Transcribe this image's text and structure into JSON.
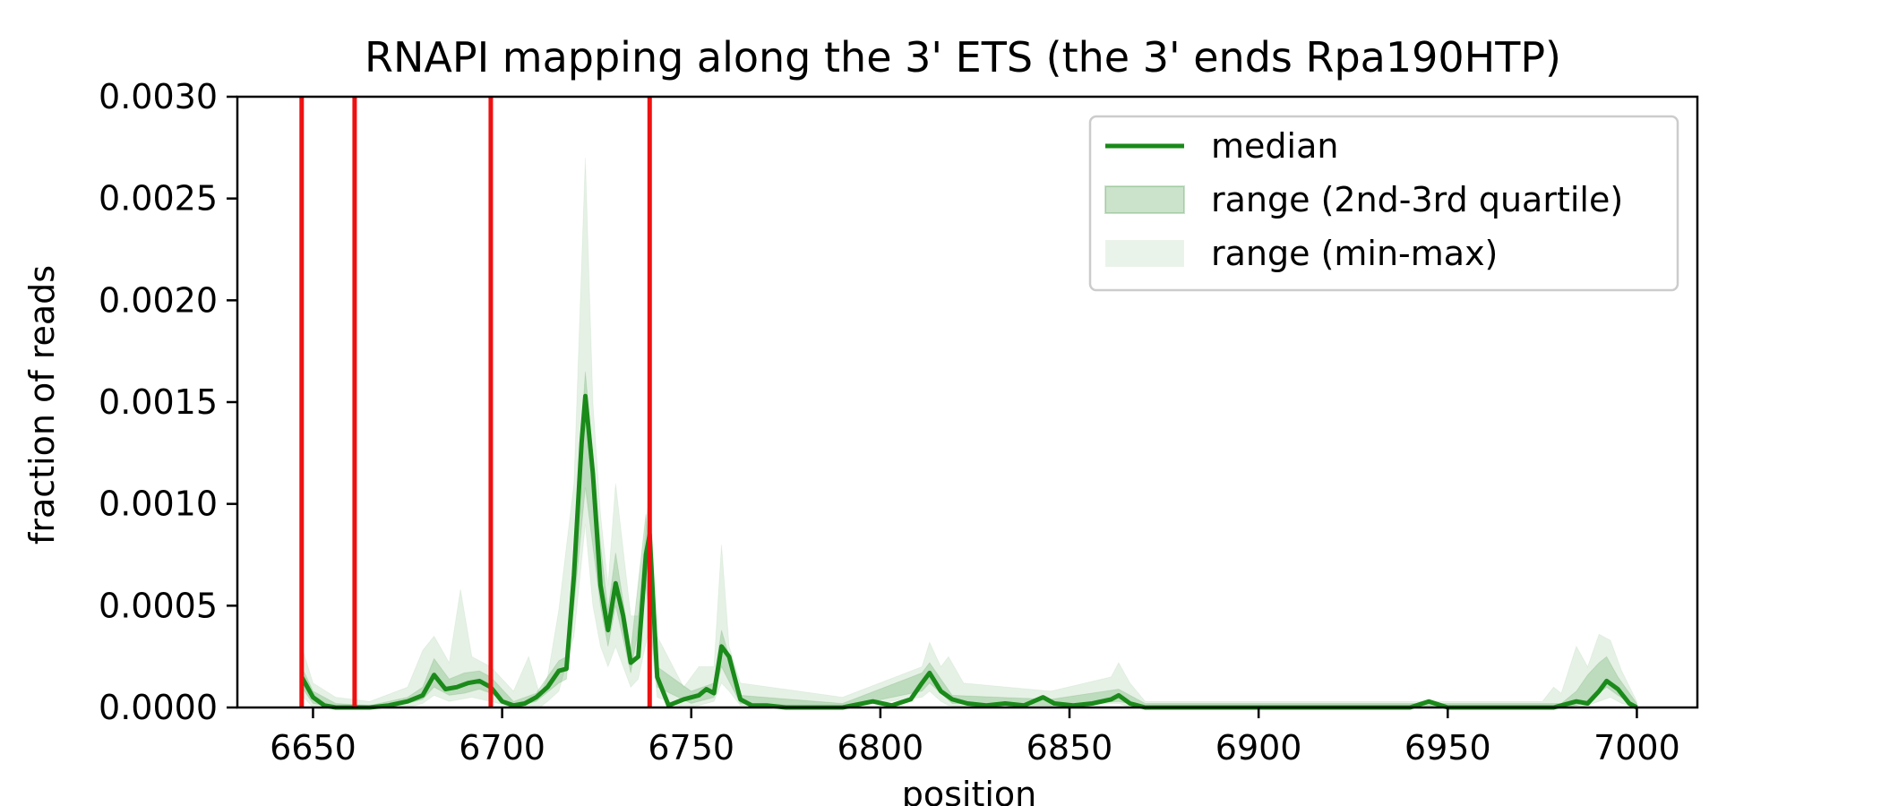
{
  "chart_data": {
    "type": "line",
    "title": "RNAPI mapping along the 3' ETS (the 3' ends Rpa190HTP)",
    "xlabel": "position",
    "ylabel": "fraction of reads",
    "xlim": [
      6630,
      7016
    ],
    "ylim": [
      0,
      0.003
    ],
    "xticks": [
      6650,
      6700,
      6750,
      6800,
      6850,
      6900,
      6950,
      7000
    ],
    "yticks": [
      "0.0000",
      "0.0005",
      "0.0010",
      "0.0015",
      "0.0020",
      "0.0025",
      "0.0030"
    ],
    "grid": false,
    "legend_position": "top-right",
    "colors": {
      "median": "#1a8a1a",
      "band": "#2e8b2e",
      "vline": "#ee1111"
    },
    "vlines": [
      6647,
      6661,
      6697,
      6739
    ],
    "series": [
      {
        "name": "median",
        "x": [
          6647,
          6650,
          6653,
          6656,
          6660,
          6665,
          6670,
          6675,
          6679,
          6682,
          6685,
          6688,
          6691,
          6694,
          6697,
          6700,
          6703,
          6706,
          6709,
          6712,
          6715,
          6717,
          6719,
          6721,
          6722,
          6724,
          6726,
          6728,
          6730,
          6732,
          6734,
          6736,
          6738,
          6739,
          6741,
          6744,
          6748,
          6752,
          6754,
          6756,
          6758,
          6760,
          6763,
          6766,
          6770,
          6775,
          6780,
          6790,
          6798,
          6803,
          6808,
          6811,
          6813,
          6816,
          6819,
          6823,
          6828,
          6833,
          6838,
          6843,
          6846,
          6851,
          6856,
          6861,
          6863,
          6866,
          6870,
          6880,
          6890,
          6900,
          6910,
          6920,
          6930,
          6940,
          6945,
          6950,
          6960,
          6970,
          6978,
          6984,
          6987,
          6990,
          6992,
          6995,
          6998,
          7000
        ],
        "y": [
          0.00015,
          5e-05,
          1e-05,
          0.0,
          0.0,
          0.0,
          1e-05,
          3e-05,
          6e-05,
          0.00016,
          9e-05,
          0.0001,
          0.00012,
          0.00013,
          0.0001,
          3e-05,
          1e-05,
          2e-05,
          5e-05,
          0.0001,
          0.00018,
          0.00019,
          0.00065,
          0.0013,
          0.00153,
          0.00115,
          0.0006,
          0.00038,
          0.00061,
          0.00045,
          0.00022,
          0.00025,
          0.00075,
          0.00085,
          0.00015,
          1e-05,
          4e-05,
          6e-05,
          9e-05,
          7e-05,
          0.0003,
          0.00025,
          4e-05,
          1e-05,
          1e-05,
          0.0,
          0.0,
          0.0,
          3e-05,
          1e-05,
          4e-05,
          0.00012,
          0.00017,
          8e-05,
          4e-05,
          2e-05,
          1e-05,
          2e-05,
          1e-05,
          5e-05,
          2e-05,
          1e-05,
          2e-05,
          4e-05,
          6e-05,
          2e-05,
          0.0,
          0.0,
          0.0,
          0.0,
          0.0,
          0.0,
          0.0,
          0.0,
          3e-05,
          0.0,
          0.0,
          0.0,
          0.0,
          3e-05,
          2e-05,
          8e-05,
          0.00013,
          9e-05,
          2e-05,
          0.0
        ]
      },
      {
        "name": "range (2nd-3rd quartile)",
        "x": [
          6647,
          6650,
          6656,
          6665,
          6675,
          6679,
          6682,
          6686,
          6690,
          6694,
          6697,
          6703,
          6709,
          6715,
          6717,
          6719,
          6722,
          6726,
          6728,
          6730,
          6734,
          6738,
          6741,
          6750,
          6756,
          6758,
          6763,
          6790,
          6811,
          6813,
          6819,
          6845,
          6863,
          6870,
          6950,
          6980,
          6984,
          6987,
          6990,
          6992,
          6995,
          7000
        ],
        "lo": [
          0.0001,
          2e-05,
          0.0,
          0.0,
          2e-05,
          4e-05,
          0.0001,
          6e-05,
          7e-05,
          9e-05,
          7e-05,
          0.0,
          3e-05,
          0.00012,
          0.00014,
          0.0005,
          0.00108,
          0.0005,
          0.0003,
          0.0005,
          0.00017,
          0.0006,
          0.0001,
          2e-05,
          5e-05,
          0.0002,
          2e-05,
          0.0,
          8e-05,
          0.00012,
          2e-05,
          1e-05,
          3e-05,
          0.0,
          0.0,
          0.0,
          1e-05,
          3e-05,
          7e-05,
          0.0001,
          6e-05,
          0.0
        ],
        "hi": [
          0.0002,
          8e-05,
          2e-05,
          1e-05,
          5e-05,
          0.0001,
          0.00024,
          0.00014,
          0.00017,
          0.00018,
          0.00015,
          3e-05,
          7e-05,
          0.00023,
          0.00025,
          0.0008,
          0.00165,
          0.0008,
          0.00048,
          0.00076,
          0.00028,
          0.00095,
          0.0002,
          8e-05,
          0.00012,
          0.00038,
          6e-05,
          2e-05,
          0.00017,
          0.00022,
          6e-05,
          4e-05,
          9e-05,
          2e-05,
          2e-05,
          2e-05,
          8e-05,
          0.00016,
          0.00022,
          0.00025,
          0.00015,
          2e-05
        ]
      },
      {
        "name": "range (min-max)",
        "x": [
          6647,
          6650,
          6656,
          6665,
          6675,
          6679,
          6682,
          6686,
          6689,
          6692,
          6697,
          6703,
          6707,
          6710,
          6712,
          6715,
          6719,
          6722,
          6724,
          6726,
          6728,
          6730,
          6734,
          6736,
          6739,
          6741,
          6748,
          6752,
          6756,
          6758,
          6760,
          6763,
          6790,
          6811,
          6813,
          6816,
          6818,
          6822,
          6845,
          6861,
          6863,
          6866,
          6870,
          6950,
          6975,
          6978,
          6980,
          6984,
          6987,
          6990,
          6993,
          6996,
          7000
        ],
        "lo": [
          6e-05,
          0.0,
          0.0,
          0.0,
          0.0,
          2e-05,
          6e-05,
          3e-05,
          4e-05,
          5e-05,
          3e-05,
          0.0,
          1e-05,
          0.0,
          3e-05,
          8e-05,
          0.00035,
          0.0009,
          0.0005,
          0.0003,
          0.0002,
          0.0003,
          0.0001,
          0.00014,
          0.0004,
          5e-05,
          0.0,
          1e-05,
          3e-05,
          0.00012,
          8e-05,
          1e-05,
          0.0,
          5e-05,
          8e-05,
          3e-05,
          1e-05,
          0.0,
          0.0,
          2e-05,
          2e-05,
          0.0,
          0.0,
          0.0,
          0.0,
          0.0,
          0.0,
          0.0,
          1e-05,
          3e-05,
          5e-05,
          2e-05,
          0.0
        ],
        "hi": [
          0.0003,
          0.00012,
          5e-05,
          3e-05,
          0.0001,
          0.00028,
          0.00035,
          0.00022,
          0.00058,
          0.00025,
          0.0002,
          8e-05,
          0.00025,
          6e-05,
          0.00015,
          0.00048,
          0.0011,
          0.0027,
          0.0015,
          0.00095,
          0.0006,
          0.0011,
          0.00045,
          0.00045,
          0.0011,
          0.00035,
          0.0001,
          0.0002,
          0.0002,
          0.0008,
          0.0003,
          0.00012,
          5e-05,
          0.0002,
          0.00032,
          0.0002,
          0.00025,
          0.00012,
          8e-05,
          0.00015,
          0.00022,
          0.00012,
          3e-05,
          3e-05,
          3e-05,
          0.0001,
          7e-05,
          0.0003,
          0.0002,
          0.00036,
          0.00033,
          0.00018,
          3e-05
        ]
      }
    ]
  }
}
